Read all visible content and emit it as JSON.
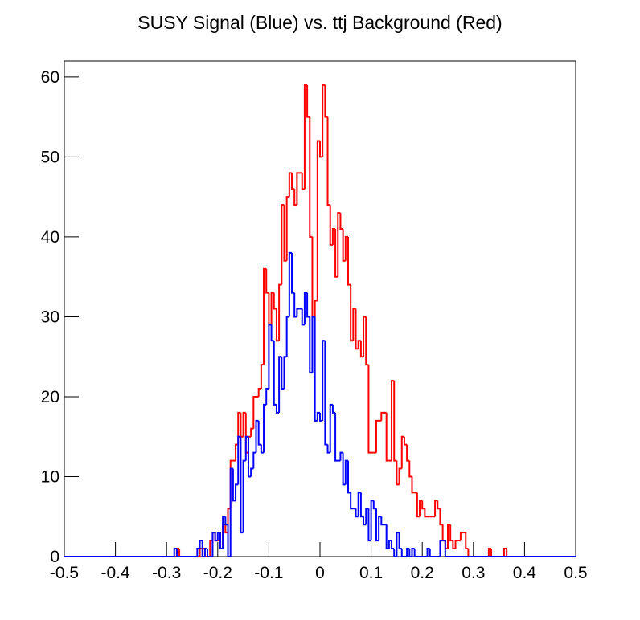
{
  "chart_data": {
    "type": "histogram",
    "title": "SUSY Signal (Blue) vs. ttj Background (Red)",
    "bins": [
      -0.5,
      -0.495,
      -0.49,
      -0.485,
      -0.48,
      -0.475,
      -0.47,
      -0.465,
      -0.46,
      -0.455,
      -0.45,
      -0.445,
      -0.44,
      -0.435,
      -0.43,
      -0.425,
      -0.42,
      -0.415,
      -0.41,
      -0.405,
      -0.4,
      -0.395,
      -0.39,
      -0.385,
      -0.38,
      -0.375,
      -0.37,
      -0.365,
      -0.36,
      -0.355,
      -0.35,
      -0.345,
      -0.34,
      -0.335,
      -0.33,
      -0.325,
      -0.32,
      -0.315,
      -0.31,
      -0.305,
      -0.3,
      -0.295,
      -0.29,
      -0.285,
      -0.28,
      -0.275,
      -0.27,
      -0.265,
      -0.26,
      -0.255,
      -0.25,
      -0.245,
      -0.24,
      -0.235,
      -0.23,
      -0.225,
      -0.22,
      -0.215,
      -0.21,
      -0.205,
      -0.2,
      -0.195,
      -0.19,
      -0.185,
      -0.18,
      -0.175,
      -0.17,
      -0.165,
      -0.16,
      -0.155,
      -0.15,
      -0.145,
      -0.14,
      -0.135,
      -0.13,
      -0.125,
      -0.12,
      -0.115,
      -0.11,
      -0.105,
      -0.1,
      -0.095,
      -0.09,
      -0.085,
      -0.08,
      -0.075,
      -0.07,
      -0.065,
      -0.06,
      -0.055,
      -0.05,
      -0.045,
      -0.04,
      -0.035,
      -0.03,
      -0.025,
      -0.02,
      -0.015,
      -0.01,
      -0.005,
      0,
      0.005,
      0.01,
      0.015,
      0.02,
      0.025,
      0.03,
      0.035,
      0.04,
      0.045,
      0.05,
      0.055,
      0.06,
      0.065,
      0.07,
      0.075,
      0.08,
      0.085,
      0.09,
      0.095,
      0.1,
      0.105,
      0.11,
      0.115,
      0.12,
      0.125,
      0.13,
      0.135,
      0.14,
      0.145,
      0.15,
      0.155,
      0.16,
      0.165,
      0.17,
      0.175,
      0.18,
      0.185,
      0.19,
      0.195,
      0.2,
      0.205,
      0.21,
      0.215,
      0.22,
      0.225,
      0.23,
      0.235,
      0.24,
      0.245,
      0.25,
      0.255,
      0.26,
      0.265,
      0.27,
      0.275,
      0.28,
      0.285,
      0.29,
      0.295,
      0.3,
      0.305,
      0.31,
      0.315,
      0.32,
      0.325,
      0.33,
      0.335,
      0.34,
      0.345,
      0.35,
      0.355,
      0.36,
      0.365,
      0.37,
      0.375,
      0.38,
      0.385,
      0.39,
      0.395,
      0.4,
      0.405,
      0.41,
      0.415,
      0.42,
      0.425,
      0.43,
      0.435,
      0.44,
      0.445,
      0.45,
      0.455,
      0.46,
      0.465,
      0.47,
      0.475,
      0.48,
      0.485,
      0.49,
      0.495,
      0.5
    ],
    "series": [
      {
        "color": "#ff0000",
        "values": [
          0,
          0,
          0,
          0,
          0,
          0,
          0,
          0,
          0,
          0,
          0,
          0,
          0,
          0,
          0,
          0,
          0,
          0,
          0,
          0,
          0,
          0,
          0,
          0,
          0,
          0,
          0,
          0,
          0,
          0,
          0,
          0,
          0,
          0,
          0,
          0,
          0,
          0,
          0,
          0,
          0,
          0,
          0,
          0,
          1,
          0,
          0,
          0,
          0,
          0,
          0,
          0,
          0,
          1,
          1,
          0,
          0,
          2,
          3,
          2,
          2,
          1,
          4,
          3,
          6,
          12,
          12,
          14,
          18,
          15,
          18,
          13,
          15,
          16,
          20,
          20,
          21,
          24,
          36,
          33,
          29,
          33,
          31,
          27,
          34,
          44,
          37,
          45,
          48,
          46,
          44,
          48,
          48,
          46,
          59,
          55,
          40,
          30,
          32,
          52,
          50,
          59,
          55,
          44,
          39,
          41,
          35,
          43,
          41,
          37,
          40,
          34,
          27,
          31,
          26,
          27,
          25,
          30,
          24,
          13,
          13,
          13,
          17,
          17,
          18,
          18,
          12,
          12,
          22,
          12,
          9,
          11,
          15,
          14,
          12,
          10,
          8,
          8,
          5,
          7,
          6,
          5,
          5,
          5,
          5,
          7,
          6,
          4,
          2,
          1,
          4,
          2,
          1,
          2,
          2,
          3,
          3,
          1,
          0,
          0,
          0,
          0,
          0,
          0,
          0,
          0,
          1,
          0,
          0,
          0,
          0,
          0,
          1,
          0,
          0,
          0,
          0,
          0,
          0,
          0,
          0,
          0,
          0,
          0,
          0,
          0,
          0,
          0,
          0,
          0,
          0,
          0,
          0,
          0,
          0,
          0,
          0,
          0,
          0,
          0
        ]
      },
      {
        "color": "#0000ff",
        "values": [
          0,
          0,
          0,
          0,
          0,
          0,
          0,
          0,
          0,
          0,
          0,
          0,
          0,
          0,
          0,
          0,
          0,
          0,
          0,
          0,
          0,
          0,
          0,
          0,
          0,
          0,
          0,
          0,
          0,
          0,
          0,
          0,
          0,
          0,
          0,
          0,
          0,
          0,
          0,
          0,
          0,
          0,
          0,
          1,
          0,
          0,
          0,
          0,
          0,
          0,
          0,
          0,
          1,
          2,
          0,
          1,
          0,
          0,
          3,
          2,
          3,
          1,
          5,
          4,
          0,
          11,
          7,
          9,
          15,
          3,
          12,
          15,
          10,
          11,
          13,
          17,
          14,
          13,
          19,
          21,
          29,
          27,
          19,
          18,
          25,
          21,
          25,
          30,
          38,
          33,
          30,
          31,
          31,
          29,
          33,
          30,
          23,
          30,
          17,
          18,
          17,
          27,
          14,
          13,
          19,
          18,
          12,
          12,
          13,
          9,
          12,
          8,
          6,
          6,
          5,
          8,
          5,
          4,
          6,
          2,
          7,
          6,
          2,
          5,
          4,
          4,
          1,
          2,
          1,
          0,
          3,
          1,
          0,
          0,
          1,
          0,
          1,
          0,
          0,
          0,
          0,
          0,
          1,
          0,
          0,
          0,
          0,
          2,
          2,
          0,
          0,
          0,
          0,
          0,
          0,
          0,
          0,
          0,
          0,
          0,
          0,
          0,
          0,
          0,
          0,
          0,
          0,
          0,
          0,
          0,
          0,
          0,
          0,
          0,
          0,
          0,
          0,
          0,
          0,
          0,
          0,
          0,
          0,
          0,
          0,
          0,
          0,
          0,
          0,
          0,
          0,
          0,
          0,
          0,
          0,
          0,
          0,
          0,
          0,
          0
        ]
      }
    ],
    "xlim": [
      -0.5,
      0.5
    ],
    "xticks": [
      -0.5,
      -0.4,
      -0.3,
      -0.2,
      -0.1,
      0,
      0.1,
      0.2,
      0.3,
      0.4,
      0.5
    ],
    "ylim": [
      0,
      62
    ],
    "yticks": [
      0,
      10,
      20,
      30,
      40,
      50,
      60
    ]
  }
}
